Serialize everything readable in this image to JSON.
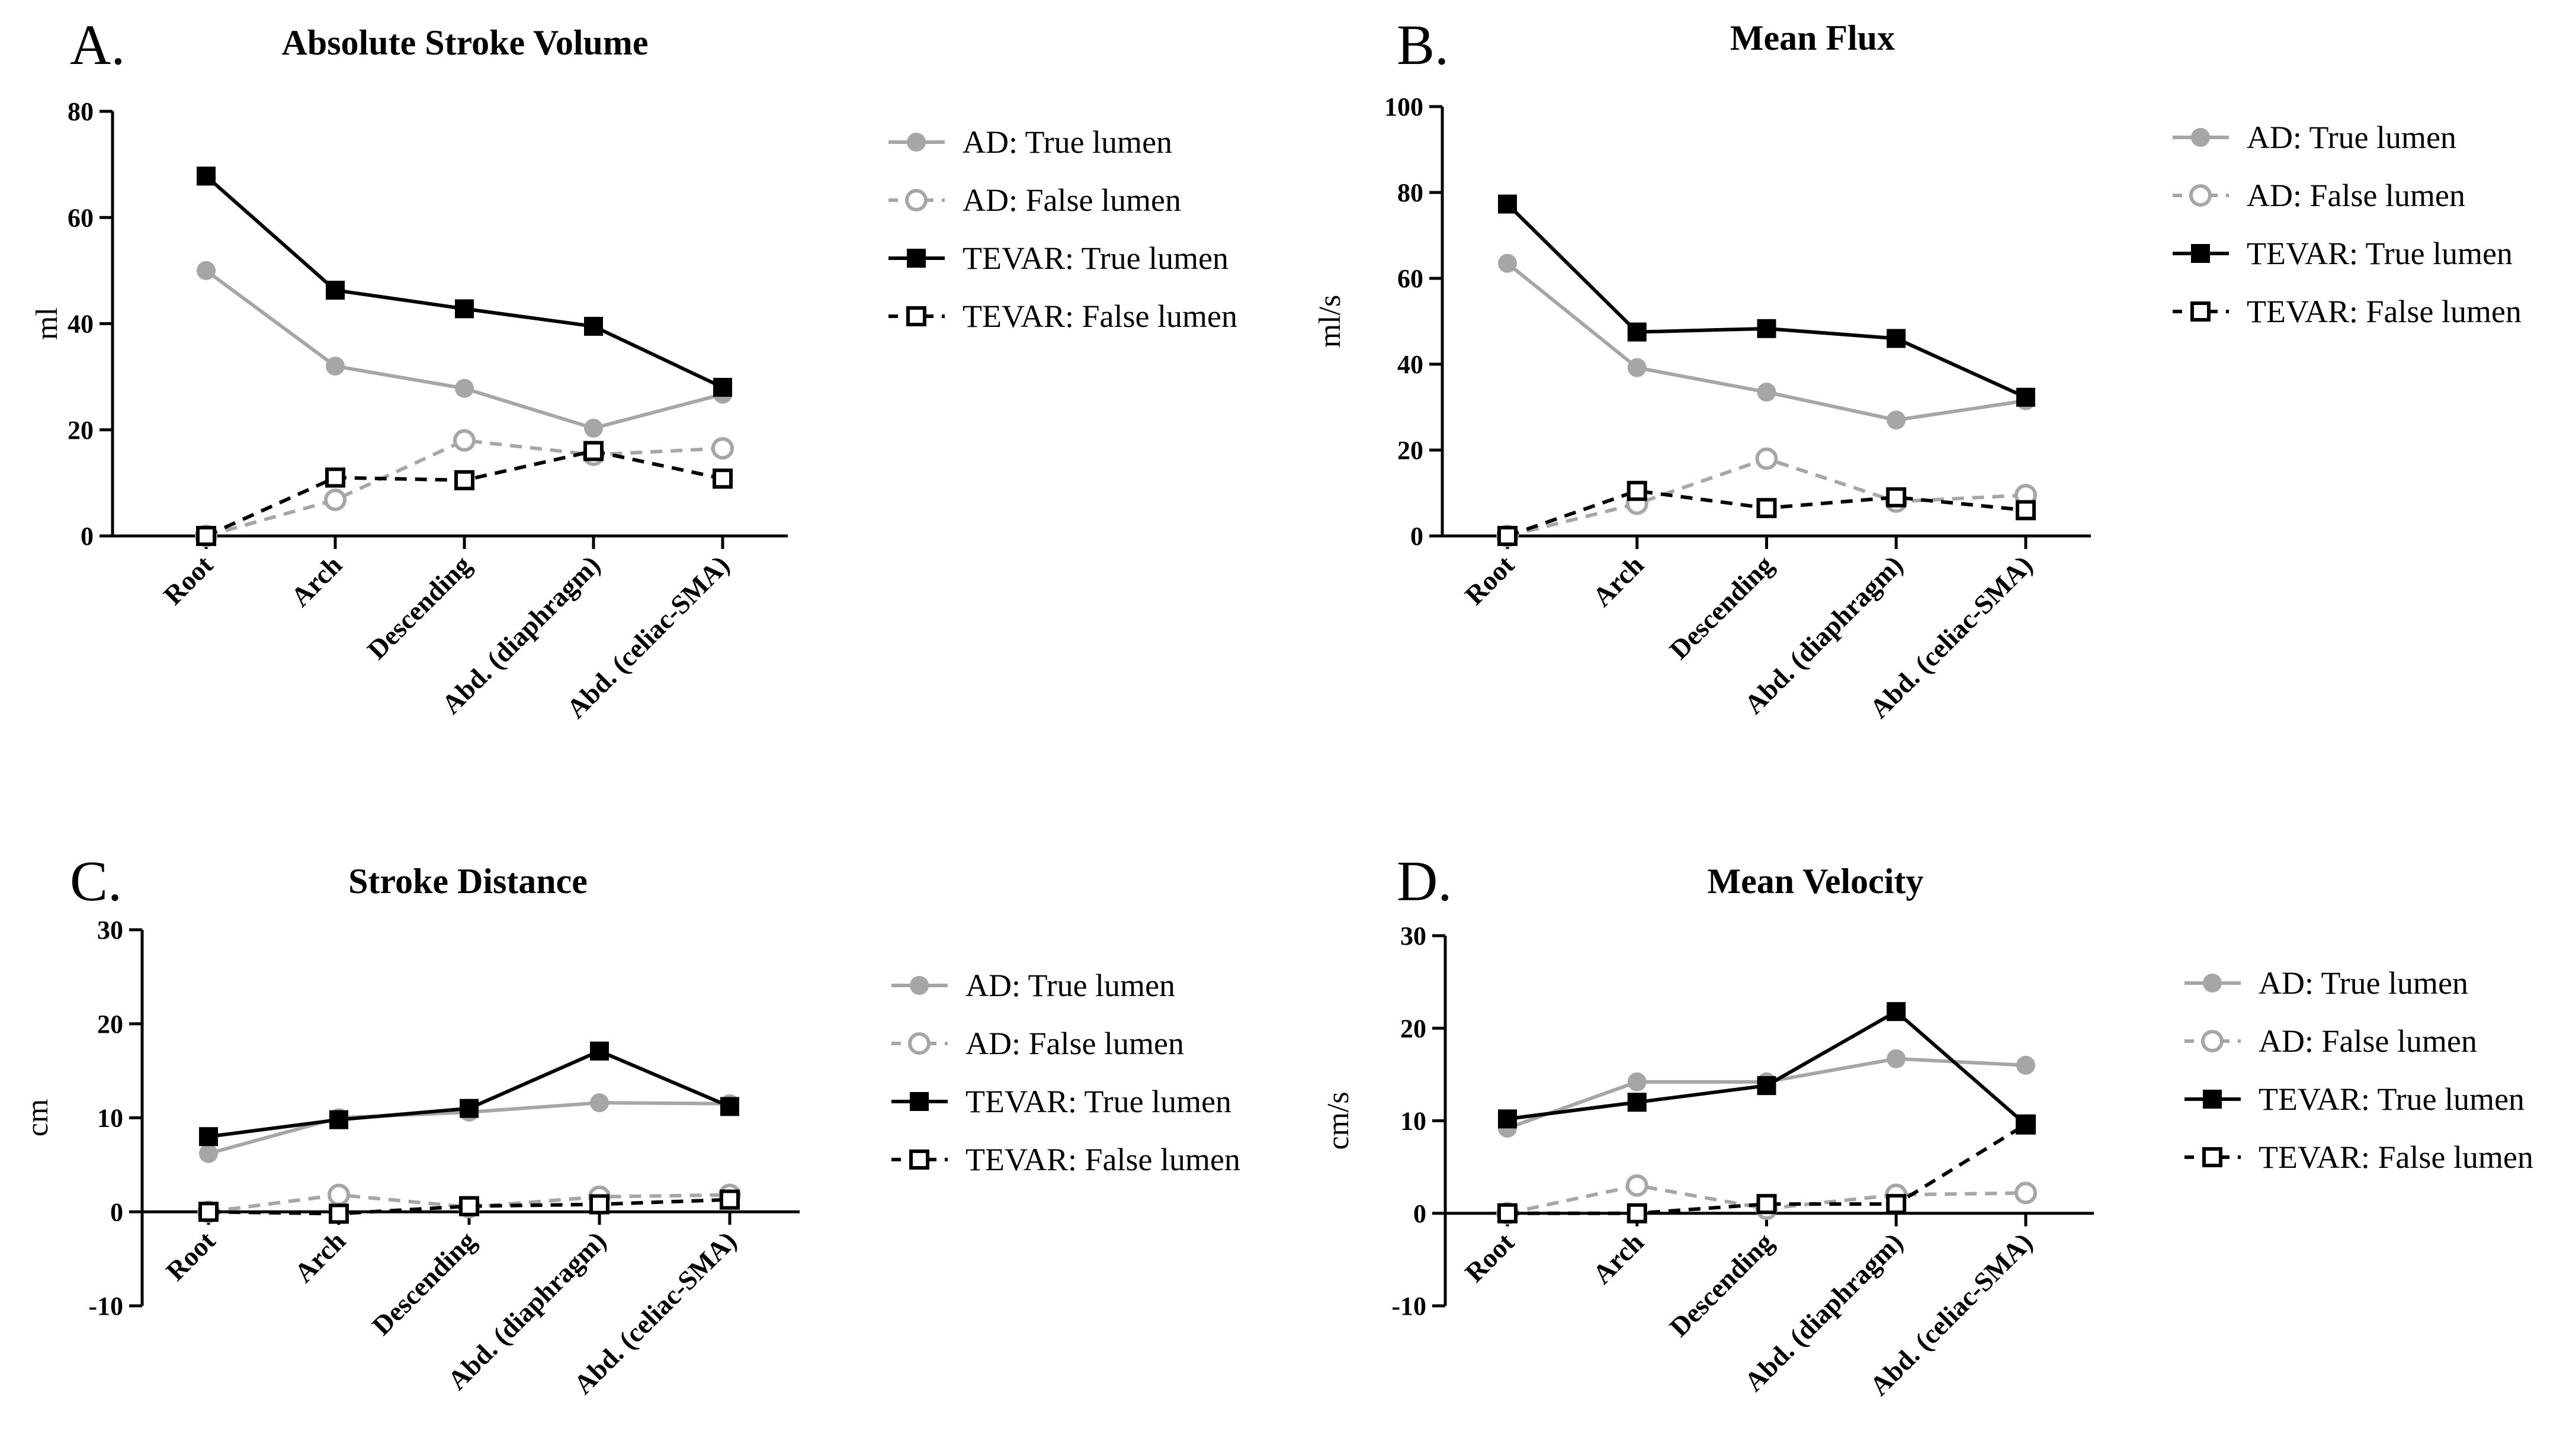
{
  "colors": {
    "ad": "#a6a6a6",
    "tevar": "#000000"
  },
  "legend": [
    {
      "key": "ad_true",
      "label": "AD: True lumen"
    },
    {
      "key": "ad_false",
      "label": "AD: False lumen"
    },
    {
      "key": "tevar_true",
      "label": "TEVAR: True lumen"
    },
    {
      "key": "tevar_false",
      "label": "TEVAR: False lumen"
    }
  ],
  "chart_data": [
    {
      "id": "A",
      "type": "line",
      "panel_label": "A.",
      "title": "Absolute Stroke Volume",
      "ylabel": "ml",
      "xlabel": "",
      "ylim": [
        0,
        80
      ],
      "yticks": [
        0,
        20,
        40,
        60,
        80
      ],
      "categories": [
        "Root",
        "Arch",
        "Descending",
        "Abd. (diaphragm)",
        "Abd. (celiac-SMA)"
      ],
      "series": [
        {
          "key": "ad_true",
          "name": "AD: True lumen",
          "values": [
            50,
            32,
            27.8,
            20.3,
            26.7
          ]
        },
        {
          "key": "ad_false",
          "name": "AD: False lumen",
          "values": [
            0,
            6.8,
            18,
            15.3,
            16.5
          ]
        },
        {
          "key": "tevar_true",
          "name": "TEVAR: True lumen",
          "values": [
            67.8,
            46.3,
            42.8,
            39.5,
            28
          ]
        },
        {
          "key": "tevar_false",
          "name": "TEVAR: False lumen",
          "values": [
            0,
            11,
            10.5,
            16,
            10.8
          ]
        }
      ]
    },
    {
      "id": "B",
      "type": "line",
      "panel_label": "B.",
      "title": "Mean Flux",
      "ylabel": "ml/s",
      "xlabel": "",
      "ylim": [
        0,
        100
      ],
      "yticks": [
        0,
        20,
        40,
        60,
        80,
        100
      ],
      "categories": [
        "Root",
        "Arch",
        "Descending",
        "Abd. (diaphragm)",
        "Abd. (celiac-SMA)"
      ],
      "series": [
        {
          "key": "ad_true",
          "name": "AD: True lumen",
          "values": [
            63.5,
            39.2,
            33.5,
            27,
            31.5
          ]
        },
        {
          "key": "ad_false",
          "name": "AD: False lumen",
          "values": [
            0,
            7.5,
            18,
            8,
            9.5
          ]
        },
        {
          "key": "tevar_true",
          "name": "TEVAR: True lumen",
          "values": [
            77.3,
            47.5,
            48.3,
            46,
            32.3
          ]
        },
        {
          "key": "tevar_false",
          "name": "TEVAR: False lumen",
          "values": [
            0,
            10.5,
            6.5,
            9,
            6
          ]
        }
      ]
    },
    {
      "id": "C",
      "type": "line",
      "panel_label": "C.",
      "title": "Stroke Distance",
      "ylabel": "cm",
      "xlabel": "",
      "ylim": [
        -10,
        30
      ],
      "yticks": [
        -10,
        0,
        10,
        20,
        30
      ],
      "categories": [
        "Root",
        "Arch",
        "Descending",
        "Abd. (diaphragm)",
        "Abd. (celiac-SMA)"
      ],
      "series": [
        {
          "key": "ad_true",
          "name": "AD: True lumen",
          "values": [
            6.2,
            10,
            10.6,
            11.6,
            11.5
          ]
        },
        {
          "key": "ad_false",
          "name": "AD: False lumen",
          "values": [
            0,
            1.8,
            0.5,
            1.6,
            1.8
          ]
        },
        {
          "key": "tevar_true",
          "name": "TEVAR: True lumen",
          "values": [
            8,
            9.8,
            11,
            17.1,
            11.2
          ]
        },
        {
          "key": "tevar_false",
          "name": "TEVAR: False lumen",
          "values": [
            0,
            -0.2,
            0.6,
            0.8,
            1.3
          ]
        }
      ]
    },
    {
      "id": "D",
      "type": "line",
      "panel_label": "D.",
      "title": "Mean Velocity",
      "ylabel": "cm/s",
      "xlabel": "",
      "ylim": [
        -10,
        30
      ],
      "yticks": [
        -10,
        0,
        10,
        20,
        30
      ],
      "categories": [
        "Root",
        "Arch",
        "Descending",
        "Abd. (diaphragm)",
        "Abd. (celiac-SMA)"
      ],
      "series": [
        {
          "key": "ad_true",
          "name": "AD: True lumen",
          "values": [
            9.2,
            14.2,
            14.2,
            16.7,
            16
          ]
        },
        {
          "key": "ad_false",
          "name": "AD: False lumen",
          "values": [
            0,
            3,
            0.5,
            2,
            2.2
          ]
        },
        {
          "key": "tevar_true",
          "name": "TEVAR: True lumen",
          "values": [
            10.2,
            12,
            13.8,
            21.8,
            9.6
          ]
        },
        {
          "key": "tevar_false",
          "name": "TEVAR: False lumen",
          "values": [
            0,
            0,
            1,
            1,
            9.6
          ]
        }
      ]
    }
  ]
}
